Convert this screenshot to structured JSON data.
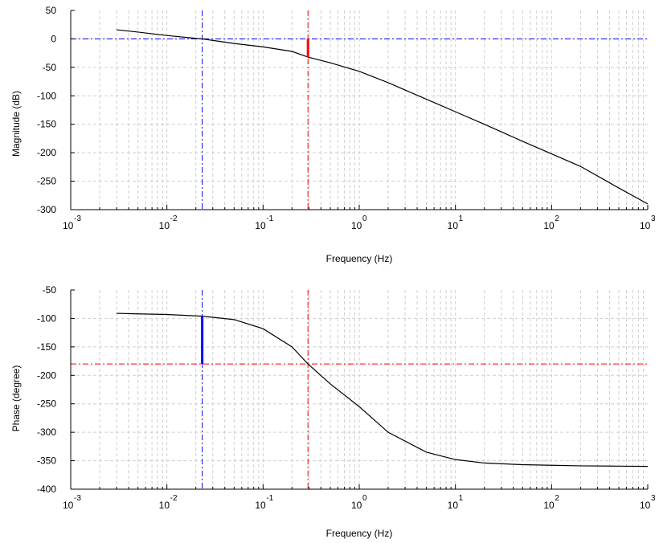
{
  "chart_data": [
    {
      "type": "line",
      "panel": "magnitude",
      "xlabel": "Frequency (Hz)",
      "ylabel": "Magnitude (dB)",
      "xscale": "log",
      "xlim": [
        0.001,
        1000
      ],
      "ylim": [
        -300,
        50
      ],
      "grid": true,
      "x_ticks": [
        {
          "base": "10",
          "exp": "-3"
        },
        {
          "base": "10",
          "exp": "-2"
        },
        {
          "base": "10",
          "exp": "-1"
        },
        {
          "base": "10",
          "exp": "0"
        },
        {
          "base": "10",
          "exp": "1"
        },
        {
          "base": "10",
          "exp": "2"
        },
        {
          "base": "10",
          "exp": "3"
        }
      ],
      "y_ticks": [
        "50",
        "0",
        "-50",
        "-100",
        "-150",
        "-200",
        "-250",
        "-300"
      ],
      "series": [
        {
          "color": "#000000",
          "x": [
            0.003,
            0.005,
            0.01,
            0.02,
            0.0233,
            0.05,
            0.1,
            0.2,
            0.293,
            0.5,
            1,
            2,
            5,
            10,
            20,
            50,
            100,
            200,
            500,
            1000
          ],
          "y": [
            16,
            12,
            6,
            1,
            0,
            -8,
            -14,
            -22,
            -32,
            -42,
            -57,
            -77,
            -106,
            -128,
            -150,
            -180,
            -202,
            -224,
            -262,
            -290
          ]
        }
      ],
      "reference_lines": [
        {
          "orientation": "horizontal",
          "value": 0,
          "color": "#0000ff",
          "style": "dashdot"
        },
        {
          "orientation": "vertical",
          "value": 0.0233,
          "color": "#0000ff",
          "style": "dashdot"
        },
        {
          "orientation": "vertical",
          "value": 0.293,
          "color": "#ff0000",
          "style": "dashdot"
        }
      ],
      "margin_marker": {
        "x": 0.293,
        "y_from": 0,
        "y_to": -32,
        "color": "#ff0000"
      }
    },
    {
      "type": "line",
      "panel": "phase",
      "xlabel": "Frequency (Hz)",
      "ylabel": "Phase (degree)",
      "xscale": "log",
      "xlim": [
        0.001,
        1000
      ],
      "ylim": [
        -400,
        -50
      ],
      "grid": true,
      "x_ticks": [
        {
          "base": "10",
          "exp": "-3"
        },
        {
          "base": "10",
          "exp": "-2"
        },
        {
          "base": "10",
          "exp": "-1"
        },
        {
          "base": "10",
          "exp": "0"
        },
        {
          "base": "10",
          "exp": "1"
        },
        {
          "base": "10",
          "exp": "2"
        },
        {
          "base": "10",
          "exp": "3"
        }
      ],
      "y_ticks": [
        "-50",
        "-100",
        "-150",
        "-200",
        "-250",
        "-300",
        "-350",
        "-400"
      ],
      "series": [
        {
          "color": "#000000",
          "x": [
            0.003,
            0.005,
            0.01,
            0.0233,
            0.05,
            0.1,
            0.2,
            0.293,
            0.5,
            1,
            2,
            5,
            10,
            20,
            50,
            100,
            200,
            500,
            1000
          ],
          "y": [
            -91,
            -92,
            -93,
            -96,
            -102,
            -118,
            -150,
            -180,
            -215,
            -255,
            -300,
            -335,
            -348,
            -354,
            -357,
            -358,
            -359,
            -359.5,
            -360
          ]
        }
      ],
      "reference_lines": [
        {
          "orientation": "horizontal",
          "value": -180,
          "color": "#ff0000",
          "style": "dashdot"
        },
        {
          "orientation": "vertical",
          "value": 0.0233,
          "color": "#0000ff",
          "style": "dashdot"
        },
        {
          "orientation": "vertical",
          "value": 0.293,
          "color": "#ff0000",
          "style": "dashdot"
        }
      ],
      "margin_marker": {
        "x": 0.0233,
        "y_from": -180,
        "y_to": -96,
        "color": "#0000ff"
      }
    }
  ]
}
